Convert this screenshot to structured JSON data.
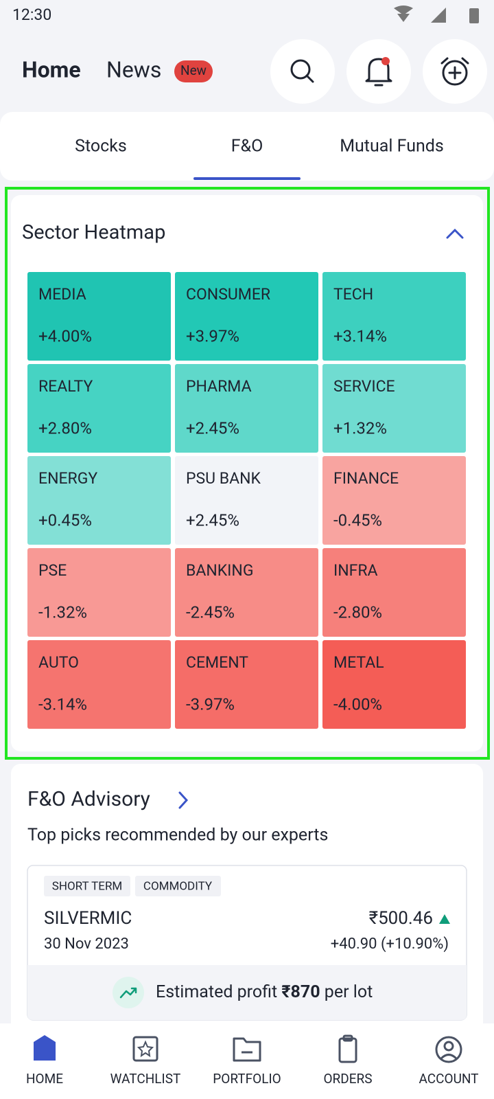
{
  "status_bar": {
    "time": "12:30"
  },
  "header": {
    "tabs": [
      "Home",
      "News"
    ],
    "badge": "New"
  },
  "segment_tabs": {
    "items": [
      "Stocks",
      "F&O",
      "Mutual Funds"
    ],
    "active": 1
  },
  "heatmap": {
    "title": "Sector Heatmap",
    "tiles": [
      {
        "name": "MEDIA",
        "change": "+4.00%",
        "color": "#20c4b2"
      },
      {
        "name": "CONSUMER",
        "change": "+3.97%",
        "color": "#22c8b5"
      },
      {
        "name": "TECH",
        "change": "+3.14%",
        "color": "#3dd0bf"
      },
      {
        "name": "REALTY",
        "change": "+2.80%",
        "color": "#46d3c3"
      },
      {
        "name": "PHARMA",
        "change": "+2.45%",
        "color": "#5fd8ca"
      },
      {
        "name": "SERVICE",
        "change": "+1.32%",
        "color": "#70dcd1"
      },
      {
        "name": "ENERGY",
        "change": "+0.45%",
        "color": "#83e0d6"
      },
      {
        "name": "PSU BANK",
        "change": "+2.45%",
        "color": "#f2f4f8"
      },
      {
        "name": "FINANCE",
        "change": "-0.45%",
        "color": "#f8a4a0"
      },
      {
        "name": "PSE",
        "change": "-1.32%",
        "color": "#f89995"
      },
      {
        "name": "BANKING",
        "change": "-2.45%",
        "color": "#f78c87"
      },
      {
        "name": "INFRA",
        "change": "-2.80%",
        "color": "#f6807b"
      },
      {
        "name": "AUTO",
        "change": "-3.14%",
        "color": "#f5746f"
      },
      {
        "name": "CEMENT",
        "change": "-3.97%",
        "color": "#f56d68"
      },
      {
        "name": "METAL",
        "change": "-4.00%",
        "color": "#f45d56"
      }
    ]
  },
  "advisory": {
    "title": "F&O Advisory",
    "subtitle": "Top picks recommended by our experts",
    "pick": {
      "tags": [
        "SHORT TERM",
        "COMMODITY"
      ],
      "symbol": "SILVERMIC",
      "date": "30 Nov 2023",
      "price": "₹500.46",
      "change": "+40.90 (+10.90%)",
      "profit": {
        "prefix": "Estimated profit",
        "amount": "₹870",
        "suffix": "per lot"
      }
    }
  },
  "bottom_nav": {
    "items": [
      "HOME",
      "WATCHLIST",
      "PORTFOLIO",
      "ORDERS",
      "ACCOUNT"
    ],
    "active": 0
  }
}
